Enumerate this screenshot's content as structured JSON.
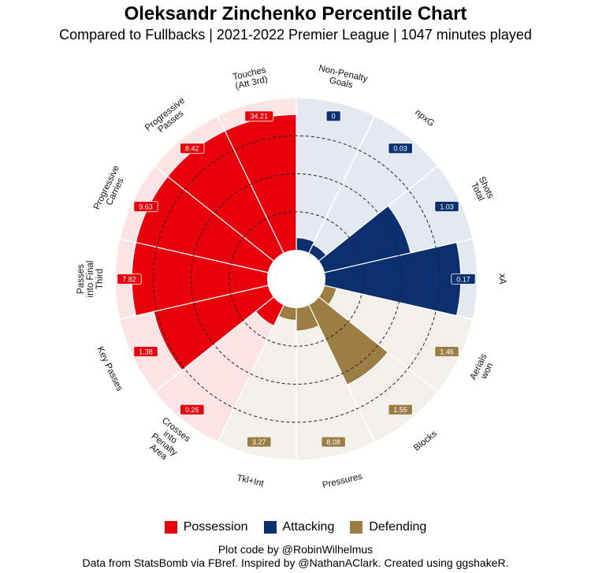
{
  "title": "Oleksandr Zinchenko Percentile Chart",
  "subtitle": "Compared to Fullbacks  | 2021-2022 Premier League  | 1047 minutes played",
  "colors": {
    "Possession": "#e8000b",
    "Attacking": "#0b2f6f",
    "Defending": "#9c7e44"
  },
  "bg_colors": {
    "Possession": "#fde4e4",
    "Attacking": "#e4e9f1",
    "Defending": "#f2f0ea"
  },
  "legend": [
    {
      "name": "Possession",
      "color": "#e8000b"
    },
    {
      "name": "Attacking",
      "color": "#0b2f6f"
    },
    {
      "name": "Defending",
      "color": "#9c7e44"
    }
  ],
  "captions": [
    "Plot code by @RobinWilhelmus",
    "Data from StatsBomb via FBref. Inspired by @NathanAClark. Created using ggshakeR."
  ],
  "chart_data": {
    "type": "polar-bar",
    "ylim": [
      0,
      100
    ],
    "gridlines": [
      25,
      50,
      75
    ],
    "series": [
      {
        "label": "Non-Penalty Goals",
        "group": "Attacking",
        "percentile": 8,
        "value": "0"
      },
      {
        "label": "npxG",
        "group": "Attacking",
        "percentile": 6,
        "value": "0.03"
      },
      {
        "label": "Shots Total",
        "group": "Attacking",
        "percentile": 58,
        "value": "1.03"
      },
      {
        "label": "xA",
        "group": "Attacking",
        "percentile": 89,
        "value": "0.17"
      },
      {
        "label": "Aerials won",
        "group": "Defending",
        "percentile": 8,
        "value": "1.46"
      },
      {
        "label": "Blocks",
        "group": "Defending",
        "percentile": 58,
        "value": "1.55"
      },
      {
        "label": "Pressures",
        "group": "Defending",
        "percentile": 15,
        "value": "8.08"
      },
      {
        "label": "Tkl+Int",
        "group": "Defending",
        "percentile": 8,
        "value": "3.27"
      },
      {
        "label": "Crosses into Penalty Area",
        "group": "Possession",
        "percentile": 15,
        "value": "0.26"
      },
      {
        "label": "Key Passes",
        "group": "Possession",
        "percentile": 77,
        "value": "1.38"
      },
      {
        "label": "Passes into Final Third",
        "group": "Possession",
        "percentile": 89,
        "value": "7.82"
      },
      {
        "label": "Progressive Carries",
        "group": "Possession",
        "percentile": 89,
        "value": "9.63"
      },
      {
        "label": "Progressive Passes",
        "group": "Possession",
        "percentile": 89,
        "value": "8.42"
      },
      {
        "label": "Touches (Att 3rd)",
        "group": "Possession",
        "percentile": 89,
        "value": "34.21"
      }
    ]
  },
  "axis_labels": [
    [
      "Non-Penalty",
      "Goals"
    ],
    [
      "npxG"
    ],
    [
      "Shots",
      "Total"
    ],
    [
      "xA"
    ],
    [
      "Aerials",
      "won"
    ],
    [
      "Blocks"
    ],
    [
      "Pressures"
    ],
    [
      "Tkl+Int"
    ],
    [
      "Crosses",
      "into",
      "Penalty",
      "Area"
    ],
    [
      "Key Passes"
    ],
    [
      "Passes",
      "into Final",
      "Third"
    ],
    [
      "Progressive",
      "Carries"
    ],
    [
      "Progressive",
      "Passes"
    ],
    [
      "Touches",
      "(Att 3rd)"
    ]
  ]
}
